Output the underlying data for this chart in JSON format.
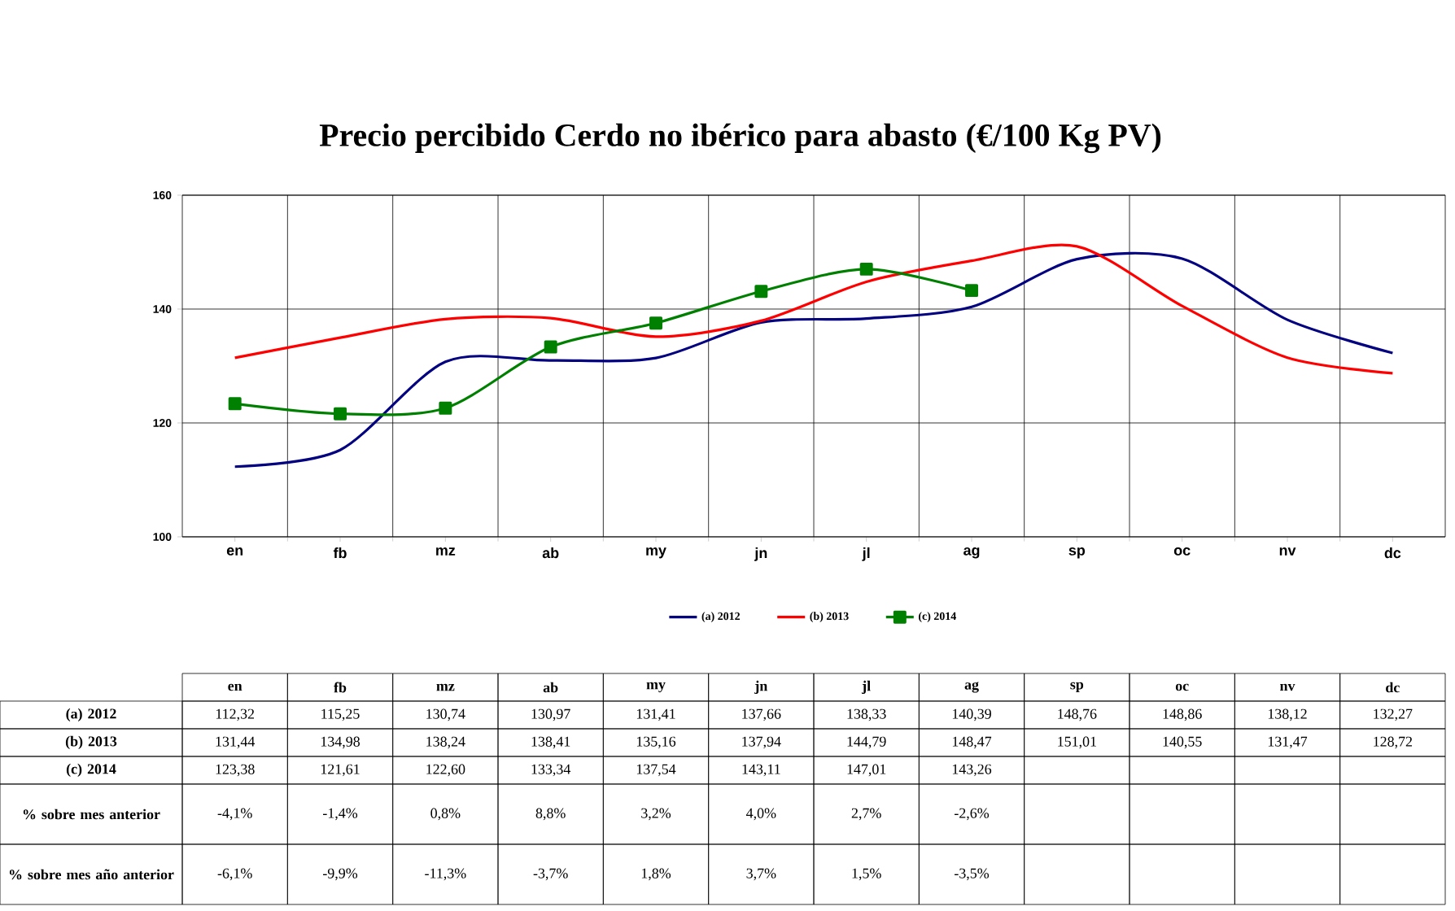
{
  "chart_data": {
    "type": "line",
    "title": "Precio percibido Cerdo no ibérico para abasto (€/100 Kg PV)",
    "categories": [
      "en",
      "fb",
      "mz",
      "ab",
      "my",
      "jn",
      "jl",
      "ag",
      "sp",
      "oc",
      "nv",
      "dc"
    ],
    "series": [
      {
        "name": "(a) 2012",
        "color": "#000080",
        "marker": "none",
        "values": [
          112.32,
          115.25,
          130.74,
          130.97,
          131.41,
          137.66,
          138.33,
          140.39,
          148.76,
          148.86,
          138.12,
          132.27
        ],
        "value_labels": [
          "112,32",
          "115,25",
          "130,74",
          "130,97",
          "131,41",
          "137,66",
          "138,33",
          "140,39",
          "148,76",
          "148,86",
          "138,12",
          "132,27"
        ]
      },
      {
        "name": "(b) 2013",
        "color": "#ff0000",
        "marker": "none",
        "values": [
          131.44,
          134.98,
          138.24,
          138.41,
          135.16,
          137.94,
          144.79,
          148.47,
          151.01,
          140.55,
          131.47,
          128.72
        ],
        "value_labels": [
          "131,44",
          "134,98",
          "138,24",
          "138,41",
          "135,16",
          "137,94",
          "144,79",
          "148,47",
          "151,01",
          "140,55",
          "131,47",
          "128,72"
        ]
      },
      {
        "name": "(c) 2014",
        "color": "#008000",
        "marker": "square",
        "values": [
          123.38,
          121.61,
          122.6,
          133.34,
          137.54,
          143.11,
          147.01,
          143.26,
          null,
          null,
          null,
          null
        ],
        "value_labels": [
          "123,38",
          "121,61",
          "122,60",
          "133,34",
          "137,54",
          "143,11",
          "147,01",
          "143,26",
          null,
          null,
          null,
          null
        ]
      }
    ],
    "ylim": [
      100,
      160
    ],
    "yticks": [
      100,
      120,
      140,
      160
    ],
    "grid": true,
    "legend": "bottom",
    "annotations": [
      "% sobre mes anterior",
      "-4,1%",
      "-1,4%",
      "0,8%",
      "8,8%",
      "3,2%",
      "4,0%",
      "2,7%",
      "-2,6%",
      "% sobre mes año anterior",
      "-6,1%",
      "-9,9%",
      "-11,3%",
      "-3,7%",
      "1,8%",
      "3,7%",
      "1,5%",
      "-3,5%"
    ]
  }
}
